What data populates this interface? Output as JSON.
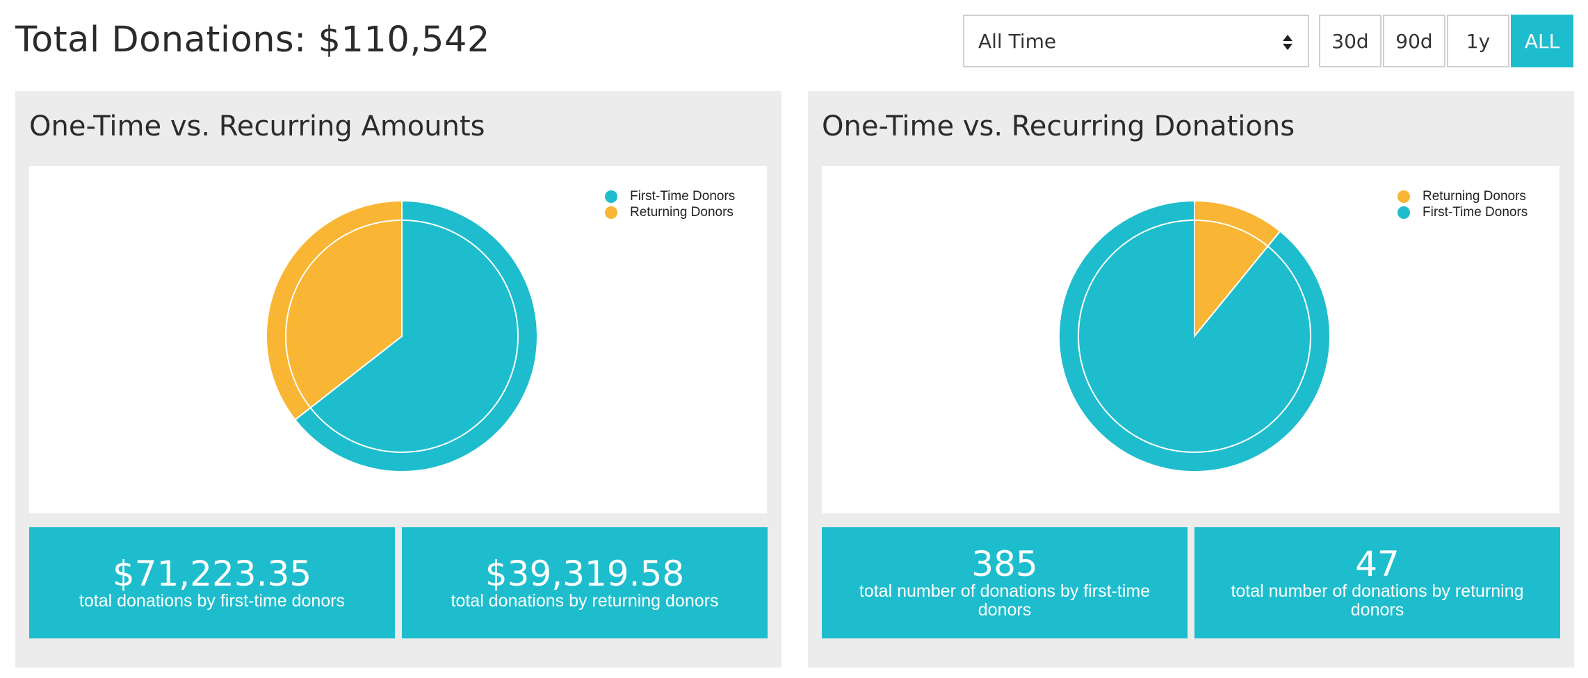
{
  "header": {
    "total_label": "Total Donations: $110,542",
    "range_select": {
      "value": "All Time"
    },
    "range_buttons": [
      {
        "label": "30d",
        "active": false
      },
      {
        "label": "90d",
        "active": false
      },
      {
        "label": "1y",
        "active": false
      },
      {
        "label": "ALL",
        "active": true
      }
    ]
  },
  "colors": {
    "teal": "#1ebdcd",
    "orange": "#f9b534",
    "panel_bg": "#ececec"
  },
  "panels": [
    {
      "title": "One-Time vs. Recurring Amounts",
      "legend": [
        {
          "label": "First-Time Donors",
          "color": "#1ebdcd"
        },
        {
          "label": "Returning Donors",
          "color": "#f9b534"
        }
      ],
      "cards": [
        {
          "value": "$71,223.35",
          "label": "total donations by first-time donors"
        },
        {
          "value": "$39,319.58",
          "label": "total donations by returning donors"
        }
      ]
    },
    {
      "title": "One-Time vs. Recurring Donations",
      "legend": [
        {
          "label": "Returning Donors",
          "color": "#f9b534"
        },
        {
          "label": "First-Time Donors",
          "color": "#1ebdcd"
        }
      ],
      "cards": [
        {
          "value": "385",
          "label": "total number of donations by first-time donors"
        },
        {
          "value": "47",
          "label": "total number of donations by returning donors"
        }
      ]
    }
  ],
  "chart_data": [
    {
      "type": "pie",
      "categories": [
        "First-Time Donors",
        "Returning Donors"
      ],
      "values": [
        71223.35,
        39319.58
      ],
      "colors": [
        "#1ebdcd",
        "#f9b534"
      ],
      "legend": "top-right"
    },
    {
      "type": "pie",
      "categories": [
        "Returning Donors",
        "First-Time Donors"
      ],
      "values": [
        47,
        385
      ],
      "colors": [
        "#f9b534",
        "#1ebdcd"
      ],
      "legend": "top-right"
    }
  ]
}
